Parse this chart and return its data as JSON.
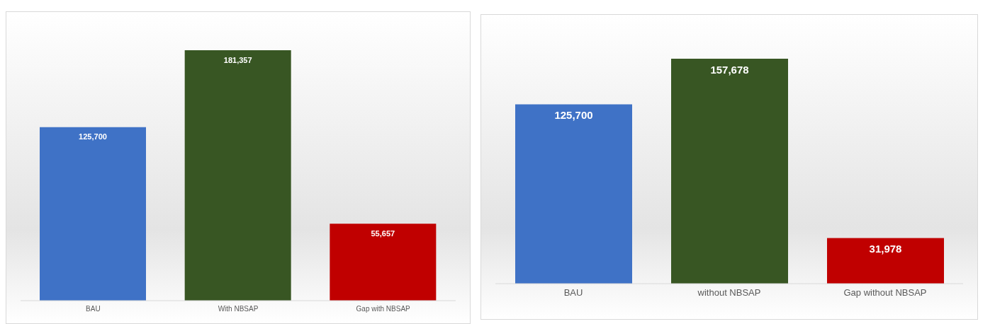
{
  "chart_data": [
    {
      "type": "bar",
      "categories": [
        "BAU",
        "With NBSAP",
        "Gap with NBSAP"
      ],
      "values": [
        125700,
        181357,
        55657
      ],
      "colors": [
        "#3f72c6",
        "#385623",
        "#c00000"
      ],
      "value_labels": [
        "125,700",
        "181,357",
        "55,657"
      ]
    },
    {
      "type": "bar",
      "categories": [
        "BAU",
        "without NBSAP",
        "Gap without NBSAP"
      ],
      "values": [
        125700,
        157678,
        31978
      ],
      "colors": [
        "#3f72c6",
        "#385623",
        "#c00000"
      ],
      "value_labels": [
        "125,700",
        "157,678",
        "31,978"
      ]
    }
  ]
}
